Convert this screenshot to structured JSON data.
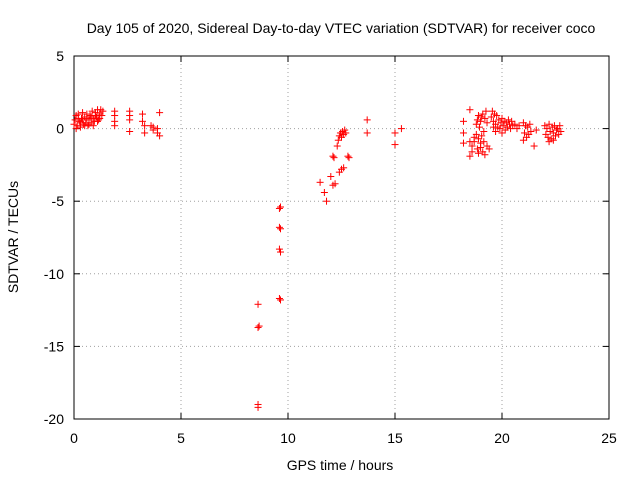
{
  "chart_data": {
    "type": "scatter",
    "title": "Day 105 of 2020, Sidereal Day-to-day VTEC variation (SDTVAR) for receiver coco",
    "xlabel": "GPS time / hours",
    "ylabel": "SDTVAR / TECUs",
    "xlim": [
      0,
      25
    ],
    "ylim": [
      -20,
      5
    ],
    "xticks": [
      "0",
      "5",
      "10",
      "15",
      "20",
      "25"
    ],
    "yticks": [
      "5",
      "0",
      "-5",
      "-10",
      "-15",
      "-20"
    ],
    "grid": true,
    "series": [
      {
        "name": "SDTVAR",
        "color": "#ff0000",
        "marker": "plus",
        "points": [
          [
            0.0,
            0.3
          ],
          [
            0.05,
            0.6
          ],
          [
            0.1,
            0.9
          ],
          [
            0.15,
            0.2
          ],
          [
            0.2,
            1.0
          ],
          [
            0.25,
            0.5
          ],
          [
            0.3,
            0.1
          ],
          [
            0.35,
            0.7
          ],
          [
            0.4,
            1.1
          ],
          [
            0.45,
            0.3
          ],
          [
            0.5,
            0.8
          ],
          [
            0.55,
            0.4
          ],
          [
            0.6,
            1.0
          ],
          [
            0.65,
            0.2
          ],
          [
            0.7,
            0.6
          ],
          [
            0.75,
            0.9
          ],
          [
            0.8,
            0.4
          ],
          [
            0.85,
            1.2
          ],
          [
            0.9,
            0.7
          ],
          [
            0.95,
            0.5
          ],
          [
            1.0,
            1.1
          ],
          [
            1.05,
            0.8
          ],
          [
            1.1,
            1.3
          ],
          [
            1.15,
            0.6
          ],
          [
            1.2,
            1.0
          ],
          [
            1.25,
            1.3
          ],
          [
            1.3,
            0.9
          ],
          [
            1.35,
            1.2
          ],
          [
            0.1,
            0.0
          ],
          [
            0.3,
            0.4
          ],
          [
            0.5,
            0.2
          ],
          [
            0.7,
            0.3
          ],
          [
            0.9,
            0.2
          ],
          [
            1.1,
            0.5
          ],
          [
            0.2,
            0.7
          ],
          [
            0.4,
            0.6
          ],
          [
            0.6,
            0.7
          ],
          [
            0.8,
            0.8
          ],
          [
            1.0,
            0.9
          ],
          [
            1.2,
            0.7
          ],
          [
            1.9,
            1.2
          ],
          [
            1.9,
            0.9
          ],
          [
            1.9,
            0.5
          ],
          [
            1.9,
            0.2
          ],
          [
            2.6,
            1.2
          ],
          [
            2.6,
            0.9
          ],
          [
            2.6,
            -0.2
          ],
          [
            2.6,
            0.6
          ],
          [
            3.2,
            1.0
          ],
          [
            3.2,
            0.5
          ],
          [
            3.3,
            0.2
          ],
          [
            3.3,
            -0.3
          ],
          [
            3.7,
            0.1
          ],
          [
            3.7,
            -0.1
          ],
          [
            3.9,
            0.0
          ],
          [
            3.9,
            -0.3
          ],
          [
            4.0,
            1.1
          ],
          [
            4.0,
            -0.5
          ],
          [
            3.6,
            0.2
          ],
          [
            8.6,
            -12.1
          ],
          [
            8.6,
            -13.7
          ],
          [
            8.65,
            -13.6
          ],
          [
            8.6,
            -19.0
          ],
          [
            8.6,
            -19.2
          ],
          [
            9.6,
            -5.5
          ],
          [
            9.65,
            -5.4
          ],
          [
            9.6,
            -6.8
          ],
          [
            9.65,
            -6.9
          ],
          [
            9.6,
            -8.3
          ],
          [
            9.65,
            -8.5
          ],
          [
            9.6,
            -11.7
          ],
          [
            9.65,
            -11.8
          ],
          [
            11.5,
            -3.7
          ],
          [
            11.7,
            -4.4
          ],
          [
            11.8,
            -5.0
          ],
          [
            12.0,
            -3.3
          ],
          [
            12.1,
            -3.9
          ],
          [
            12.2,
            -3.8
          ],
          [
            12.1,
            -1.9
          ],
          [
            12.15,
            -2.0
          ],
          [
            12.4,
            -3.0
          ],
          [
            12.5,
            -2.8
          ],
          [
            12.6,
            -2.7
          ],
          [
            12.3,
            -1.2
          ],
          [
            12.35,
            -0.8
          ],
          [
            12.4,
            -0.5
          ],
          [
            12.45,
            -0.3
          ],
          [
            12.5,
            -0.6
          ],
          [
            12.55,
            -0.2
          ],
          [
            12.6,
            -0.4
          ],
          [
            12.65,
            -0.1
          ],
          [
            12.7,
            -0.3
          ],
          [
            12.8,
            -1.9
          ],
          [
            12.85,
            -2.0
          ],
          [
            13.7,
            0.6
          ],
          [
            13.7,
            -0.3
          ],
          [
            15.0,
            -0.3
          ],
          [
            15.0,
            -1.1
          ],
          [
            15.3,
            0.0
          ],
          [
            18.2,
            0.5
          ],
          [
            18.2,
            -0.3
          ],
          [
            18.2,
            -1.0
          ],
          [
            18.5,
            1.3
          ],
          [
            18.5,
            -0.9
          ],
          [
            18.5,
            -1.9
          ],
          [
            18.6,
            -1.2
          ],
          [
            18.6,
            -1.6
          ],
          [
            18.7,
            -0.6
          ],
          [
            18.7,
            -0.9
          ],
          [
            18.8,
            0.3
          ],
          [
            18.85,
            0.6
          ],
          [
            18.9,
            0.9
          ],
          [
            18.95,
            0.1
          ],
          [
            19.0,
            0.5
          ],
          [
            19.05,
            0.8
          ],
          [
            19.1,
            1.0
          ],
          [
            19.15,
            -0.2
          ],
          [
            19.2,
            0.7
          ],
          [
            19.25,
            1.2
          ],
          [
            19.3,
            0.4
          ],
          [
            18.8,
            -0.4
          ],
          [
            18.9,
            -0.7
          ],
          [
            19.0,
            -1.0
          ],
          [
            18.85,
            -1.4
          ],
          [
            18.9,
            -1.7
          ],
          [
            19.0,
            -1.3
          ],
          [
            19.1,
            -1.6
          ],
          [
            19.2,
            -1.8
          ],
          [
            19.3,
            -1.2
          ],
          [
            19.4,
            -1.4
          ],
          [
            19.05,
            -0.5
          ],
          [
            19.15,
            -0.9
          ],
          [
            19.5,
            0.8
          ],
          [
            19.55,
            1.2
          ],
          [
            19.6,
            0.5
          ],
          [
            19.65,
            1.0
          ],
          [
            19.7,
            0.3
          ],
          [
            19.75,
            0.9
          ],
          [
            19.8,
            0.1
          ],
          [
            19.85,
            0.6
          ],
          [
            19.9,
            0.0
          ],
          [
            19.95,
            0.4
          ],
          [
            20.0,
            0.7
          ],
          [
            20.05,
            0.2
          ],
          [
            20.1,
            0.5
          ],
          [
            20.15,
            -0.1
          ],
          [
            20.2,
            0.4
          ],
          [
            20.25,
            0.1
          ],
          [
            20.3,
            0.6
          ],
          [
            20.35,
            0.3
          ],
          [
            20.4,
            0.0
          ],
          [
            20.45,
            0.5
          ],
          [
            20.5,
            0.2
          ],
          [
            20.6,
            0.3
          ],
          [
            20.7,
            0.0
          ],
          [
            20.8,
            0.2
          ],
          [
            19.7,
            -0.2
          ],
          [
            19.6,
            0.1
          ],
          [
            20.0,
            -0.3
          ],
          [
            21.0,
            0.4
          ],
          [
            21.05,
            -0.3
          ],
          [
            21.1,
            0.2
          ],
          [
            21.15,
            -0.6
          ],
          [
            21.2,
            0.1
          ],
          [
            21.25,
            -0.4
          ],
          [
            21.3,
            0.3
          ],
          [
            21.35,
            -0.2
          ],
          [
            21.0,
            -0.8
          ],
          [
            21.5,
            -1.2
          ],
          [
            21.6,
            -0.1
          ],
          [
            22.0,
            0.2
          ],
          [
            22.05,
            -0.4
          ],
          [
            22.1,
            0.0
          ],
          [
            22.15,
            -0.6
          ],
          [
            22.2,
            0.3
          ],
          [
            22.25,
            -0.2
          ],
          [
            22.3,
            -0.7
          ],
          [
            22.35,
            0.1
          ],
          [
            22.4,
            -0.3
          ],
          [
            22.45,
            0.2
          ],
          [
            22.5,
            -0.5
          ],
          [
            22.55,
            -0.1
          ],
          [
            22.6,
            0.0
          ],
          [
            22.65,
            -0.4
          ],
          [
            22.7,
            0.2
          ],
          [
            22.75,
            -0.2
          ],
          [
            22.2,
            -0.9
          ],
          [
            22.4,
            -0.8
          ]
        ]
      }
    ]
  }
}
